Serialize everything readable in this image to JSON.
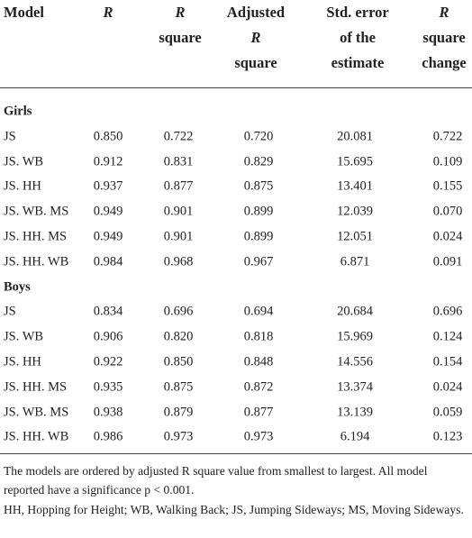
{
  "table": {
    "header": [
      [
        "Model"
      ],
      [
        "R"
      ],
      [
        "R",
        "square"
      ],
      [
        "Adjusted",
        "R",
        "square"
      ],
      [
        "Std. error",
        "of the",
        "estimate"
      ],
      [
        "R",
        "square",
        "change"
      ]
    ],
    "groups": [
      {
        "label": "Girls",
        "rows": [
          [
            "JS",
            "0.850",
            "0.722",
            "0.720",
            "20.081",
            "0.722"
          ],
          [
            "JS. WB",
            "0.912",
            "0.831",
            "0.829",
            "15.695",
            "0.109"
          ],
          [
            "JS. HH",
            "0.937",
            "0.877",
            "0.875",
            "13.401",
            "0.155"
          ],
          [
            "JS. WB. MS",
            "0.949",
            "0.901",
            "0.899",
            "12.039",
            "0.070"
          ],
          [
            "JS. HH. MS",
            "0.949",
            "0.901",
            "0.899",
            "12.051",
            "0.024"
          ],
          [
            "JS. HH. WB",
            "0.984",
            "0.968",
            "0.967",
            "6.871",
            "0.091"
          ]
        ]
      },
      {
        "label": "Boys",
        "rows": [
          [
            "JS",
            "0.834",
            "0.696",
            "0.694",
            "20.684",
            "0.696"
          ],
          [
            "JS. WB",
            "0.906",
            "0.820",
            "0.818",
            "15.969",
            "0.124"
          ],
          [
            "JS. HH",
            "0.922",
            "0.850",
            "0.848",
            "14.556",
            "0.154"
          ],
          [
            "JS. HH. MS",
            "0.935",
            "0.875",
            "0.872",
            "13.374",
            "0.024"
          ],
          [
            "JS. WB. MS",
            "0.938",
            "0.879",
            "0.877",
            "13.139",
            "0.059"
          ],
          [
            "JS. HH. WB",
            "0.986",
            "0.973",
            "0.973",
            "6.194",
            "0.123"
          ]
        ]
      }
    ]
  },
  "notes": [
    "The models are ordered by adjusted R square value from smallest to largest. All model reported have a significance p < 0.001.",
    "HH, Hopping for Height; WB, Walking Back; JS, Jumping Sideways; MS, Moving Sideways."
  ]
}
